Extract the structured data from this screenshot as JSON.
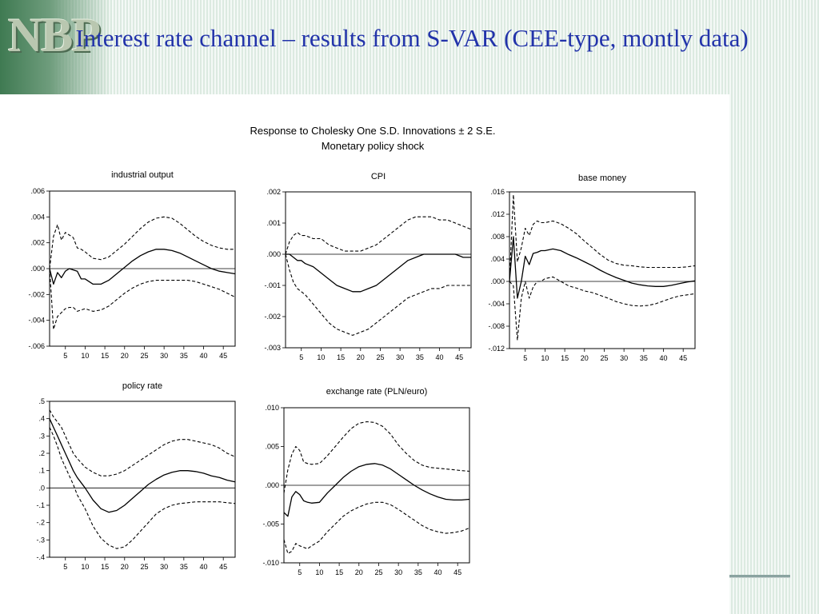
{
  "slide": {
    "logo_text": "NBP",
    "title": "Interest rate channel – results from S-VAR (CEE-type, montly data)"
  },
  "figure": {
    "title_line1": "Response to Cholesky One S.D. Innovations ± 2 S.E.",
    "title_line2": "Monetary policy shock"
  },
  "chart_data": [
    {
      "type": "line",
      "title": "industrial output",
      "x": [
        1,
        2,
        3,
        4,
        5,
        6,
        7,
        8,
        9,
        10,
        12,
        14,
        16,
        18,
        20,
        22,
        24,
        26,
        28,
        30,
        32,
        34,
        36,
        38,
        40,
        42,
        44,
        46,
        48
      ],
      "xticks": [
        5,
        10,
        15,
        20,
        25,
        30,
        35,
        40,
        45
      ],
      "yticks": [
        ".006",
        ".004",
        ".002",
        ".000",
        "-.002",
        "-.004",
        "-.006"
      ],
      "ylim": [
        -0.006,
        0.006
      ],
      "zero_line": true,
      "series": [
        {
          "style": "solid",
          "values": [
            0.0,
            -0.0012,
            -0.0003,
            -0.0007,
            -0.0002,
            0.0,
            -0.0001,
            -0.0002,
            -0.0008,
            -0.0008,
            -0.0012,
            -0.0012,
            -0.0009,
            -0.0004,
            0.0001,
            0.0006,
            0.001,
            0.0013,
            0.0015,
            0.0015,
            0.0014,
            0.0012,
            0.0009,
            0.0006,
            0.0003,
            0.0,
            -0.0002,
            -0.0003,
            -0.0004
          ]
        },
        {
          "style": "dashed",
          "values": [
            0.0,
            0.0025,
            0.0034,
            0.0022,
            0.0028,
            0.0026,
            0.0024,
            0.0016,
            0.0015,
            0.0013,
            0.0008,
            0.0007,
            0.0009,
            0.0014,
            0.0019,
            0.0025,
            0.0031,
            0.0036,
            0.0039,
            0.004,
            0.0039,
            0.0035,
            0.003,
            0.0025,
            0.0021,
            0.0018,
            0.0016,
            0.0015,
            0.0015
          ]
        },
        {
          "style": "dashed",
          "values": [
            0.0,
            -0.0047,
            -0.0037,
            -0.0034,
            -0.0031,
            -0.003,
            -0.003,
            -0.0033,
            -0.0032,
            -0.0031,
            -0.0033,
            -0.0032,
            -0.0029,
            -0.0024,
            -0.0019,
            -0.0015,
            -0.0012,
            -0.001,
            -0.0009,
            -0.0009,
            -0.0009,
            -0.0009,
            -0.0009,
            -0.001,
            -0.0012,
            -0.0014,
            -0.0016,
            -0.0019,
            -0.0022
          ]
        }
      ]
    },
    {
      "type": "line",
      "title": "CPI",
      "x": [
        1,
        2,
        3,
        4,
        5,
        6,
        8,
        10,
        12,
        14,
        16,
        18,
        20,
        22,
        24,
        26,
        28,
        30,
        32,
        34,
        36,
        38,
        40,
        42,
        44,
        46,
        48
      ],
      "xticks": [
        5,
        10,
        15,
        20,
        25,
        30,
        35,
        40,
        45
      ],
      "yticks": [
        ".002",
        ".001",
        ".000",
        "-.001",
        "-.002",
        "-.003"
      ],
      "ylim": [
        -0.003,
        0.002
      ],
      "zero_line": true,
      "series": [
        {
          "style": "solid",
          "values": [
            0.0,
            0.0,
            -0.0001,
            -0.0002,
            -0.0002,
            -0.0003,
            -0.0004,
            -0.0006,
            -0.0008,
            -0.001,
            -0.0011,
            -0.0012,
            -0.0012,
            -0.0011,
            -0.001,
            -0.0008,
            -0.0006,
            -0.0004,
            -0.0002,
            -0.0001,
            0.0,
            0.0,
            0.0,
            0.0,
            0.0,
            -0.0001,
            -0.0001
          ]
        },
        {
          "style": "dashed",
          "values": [
            0.0,
            0.0004,
            0.0006,
            0.0007,
            0.0006,
            0.0006,
            0.0005,
            0.0005,
            0.0003,
            0.0002,
            0.0001,
            0.0001,
            0.0001,
            0.0002,
            0.0003,
            0.0005,
            0.0007,
            0.0009,
            0.0011,
            0.0012,
            0.0012,
            0.0012,
            0.0011,
            0.0011,
            0.001,
            0.0009,
            0.0008
          ]
        },
        {
          "style": "dashed",
          "values": [
            0.0,
            -0.0005,
            -0.0009,
            -0.0011,
            -0.0012,
            -0.0013,
            -0.0016,
            -0.0019,
            -0.0022,
            -0.0024,
            -0.0025,
            -0.0026,
            -0.0025,
            -0.0024,
            -0.0022,
            -0.002,
            -0.0018,
            -0.0016,
            -0.0014,
            -0.0013,
            -0.0012,
            -0.0011,
            -0.0011,
            -0.001,
            -0.001,
            -0.001,
            -0.001
          ]
        }
      ]
    },
    {
      "type": "line",
      "title": "base money",
      "x": [
        1,
        2,
        3,
        4,
        5,
        6,
        7,
        8,
        9,
        10,
        12,
        14,
        16,
        18,
        20,
        22,
        24,
        26,
        28,
        30,
        32,
        34,
        36,
        38,
        40,
        42,
        44,
        46,
        48
      ],
      "xticks": [
        5,
        10,
        15,
        20,
        25,
        30,
        35,
        40,
        45
      ],
      "yticks": [
        ".016",
        ".012",
        ".008",
        ".004",
        ".000",
        "-.004",
        "-.008",
        "-.012"
      ],
      "ylim": [
        -0.012,
        0.016
      ],
      "zero_line": true,
      "series": [
        {
          "style": "solid",
          "values": [
            0.0,
            0.008,
            -0.003,
            0.0,
            0.0045,
            0.003,
            0.005,
            0.0052,
            0.0055,
            0.0055,
            0.0058,
            0.0055,
            0.0048,
            0.0042,
            0.0035,
            0.0028,
            0.002,
            0.0013,
            0.0007,
            0.0002,
            -0.0003,
            -0.0006,
            -0.0008,
            -0.0009,
            -0.0009,
            -0.0007,
            -0.0004,
            -0.0001,
            0.0001
          ]
        },
        {
          "style": "dashed",
          "values": [
            0.0,
            0.0155,
            0.0035,
            0.006,
            0.0095,
            0.0082,
            0.0102,
            0.0108,
            0.0105,
            0.0105,
            0.0108,
            0.0103,
            0.0095,
            0.0085,
            0.0072,
            0.006,
            0.0048,
            0.0038,
            0.0032,
            0.0029,
            0.0028,
            0.0026,
            0.0025,
            0.0025,
            0.0025,
            0.0025,
            0.0025,
            0.0026,
            0.0028
          ]
        },
        {
          "style": "dashed",
          "values": [
            0.0,
            -0.0008,
            -0.0105,
            -0.003,
            0.0,
            -0.003,
            -0.001,
            0.0,
            0.0,
            0.0005,
            0.0008,
            0.0,
            -0.0008,
            -0.0012,
            -0.0017,
            -0.002,
            -0.0025,
            -0.003,
            -0.0036,
            -0.004,
            -0.0043,
            -0.0044,
            -0.0043,
            -0.004,
            -0.0035,
            -0.003,
            -0.0026,
            -0.0024,
            -0.0022
          ]
        }
      ]
    },
    {
      "type": "line",
      "title": "policy rate",
      "x": [
        1,
        2,
        3,
        4,
        5,
        6,
        7,
        8,
        10,
        12,
        14,
        16,
        18,
        20,
        22,
        24,
        26,
        28,
        30,
        32,
        34,
        36,
        38,
        40,
        42,
        44,
        46,
        48
      ],
      "xticks": [
        5,
        10,
        15,
        20,
        25,
        30,
        35,
        40,
        45
      ],
      "yticks": [
        ".5",
        ".4",
        ".3",
        ".2",
        ".1",
        ".0",
        "-.1",
        "-.2",
        "-.3",
        "-.4"
      ],
      "ylim": [
        -0.4,
        0.5
      ],
      "zero_line": true,
      "series": [
        {
          "style": "solid",
          "values": [
            0.4,
            0.35,
            0.3,
            0.25,
            0.2,
            0.15,
            0.1,
            0.06,
            0.0,
            -0.07,
            -0.12,
            -0.14,
            -0.13,
            -0.1,
            -0.06,
            -0.02,
            0.02,
            0.05,
            0.075,
            0.09,
            0.1,
            0.1,
            0.095,
            0.085,
            0.07,
            0.06,
            0.045,
            0.035
          ]
        },
        {
          "style": "dashed",
          "values": [
            0.45,
            0.41,
            0.38,
            0.35,
            0.3,
            0.25,
            0.2,
            0.17,
            0.12,
            0.09,
            0.07,
            0.07,
            0.08,
            0.1,
            0.13,
            0.16,
            0.19,
            0.22,
            0.25,
            0.27,
            0.28,
            0.28,
            0.27,
            0.26,
            0.25,
            0.23,
            0.2,
            0.18
          ]
        },
        {
          "style": "dashed",
          "values": [
            0.35,
            0.3,
            0.24,
            0.17,
            0.12,
            0.07,
            0.02,
            -0.04,
            -0.12,
            -0.22,
            -0.29,
            -0.33,
            -0.35,
            -0.34,
            -0.3,
            -0.25,
            -0.2,
            -0.15,
            -0.12,
            -0.1,
            -0.09,
            -0.085,
            -0.08,
            -0.08,
            -0.08,
            -0.08,
            -0.085,
            -0.09
          ]
        }
      ]
    },
    {
      "type": "line",
      "title": "exchange rate (PLN/euro)",
      "x": [
        1,
        2,
        3,
        4,
        5,
        6,
        7,
        8,
        10,
        12,
        14,
        16,
        18,
        20,
        22,
        24,
        26,
        28,
        30,
        32,
        34,
        36,
        38,
        40,
        42,
        44,
        46,
        48
      ],
      "xticks": [
        5,
        10,
        15,
        20,
        25,
        30,
        35,
        40,
        45
      ],
      "yticks": [
        ".010",
        ".005",
        ".000",
        "-.005",
        "-.010"
      ],
      "ylim": [
        -0.01,
        0.01
      ],
      "zero_line": true,
      "series": [
        {
          "style": "solid",
          "values": [
            -0.0035,
            -0.004,
            -0.0015,
            -0.0008,
            -0.0012,
            -0.002,
            -0.0022,
            -0.0023,
            -0.0022,
            -0.001,
            0.0,
            0.001,
            0.0018,
            0.0024,
            0.0027,
            0.0028,
            0.0026,
            0.0021,
            0.0014,
            0.0007,
            0.0,
            -0.0006,
            -0.0011,
            -0.0015,
            -0.0018,
            -0.0019,
            -0.0019,
            -0.0018
          ]
        },
        {
          "style": "dashed",
          "values": [
            -0.001,
            0.002,
            0.004,
            0.005,
            0.0045,
            0.003,
            0.0028,
            0.0027,
            0.0028,
            0.0038,
            0.005,
            0.0062,
            0.0073,
            0.008,
            0.0082,
            0.0081,
            0.0076,
            0.0066,
            0.0052,
            0.0041,
            0.0032,
            0.0026,
            0.0023,
            0.0022,
            0.0021,
            0.002,
            0.0019,
            0.0018
          ]
        },
        {
          "style": "dashed",
          "values": [
            -0.007,
            -0.0088,
            -0.0085,
            -0.0075,
            -0.0078,
            -0.008,
            -0.0082,
            -0.0078,
            -0.0072,
            -0.006,
            -0.005,
            -0.004,
            -0.0033,
            -0.0028,
            -0.0024,
            -0.0022,
            -0.0022,
            -0.0025,
            -0.0031,
            -0.0038,
            -0.0045,
            -0.0052,
            -0.0057,
            -0.006,
            -0.0062,
            -0.0061,
            -0.0059,
            -0.0055
          ]
        }
      ]
    }
  ]
}
